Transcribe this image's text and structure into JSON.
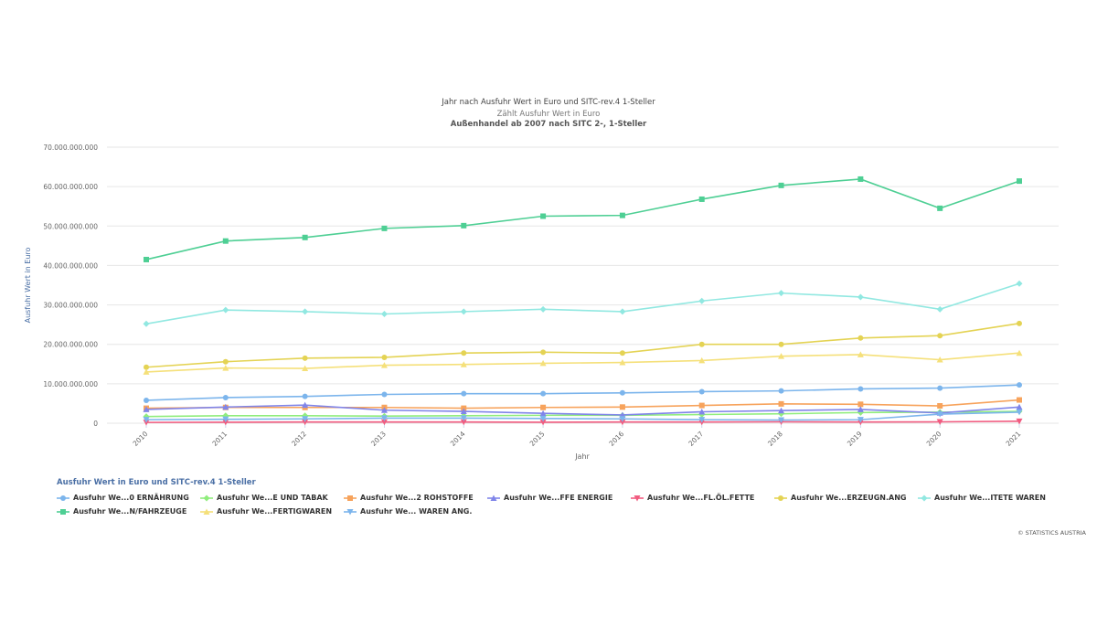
{
  "chart_data": {
    "type": "line",
    "title": "Jahr nach Ausfuhr Wert in Euro und SITC-rev.4 1-Steller",
    "subtitle": "Zählt Ausfuhr Wert in Euro",
    "subtitle2": "Außenhandel ab 2007 nach SITC 2-, 1-Steller",
    "xlabel": "Jahr",
    "ylabel": "Ausfuhr Wert in Euro",
    "ylim": [
      0,
      70000000000
    ],
    "yticks": [
      "0",
      "10.000.000.000",
      "20.000.000.000",
      "30.000.000.000",
      "40.000.000.000",
      "50.000.000.000",
      "60.000.000.000",
      "70.000.000.000"
    ],
    "ytick_values": [
      0,
      10000000000,
      20000000000,
      30000000000,
      40000000000,
      50000000000,
      60000000000,
      70000000000
    ],
    "categories": [
      "2010",
      "2011",
      "2012",
      "2013",
      "2014",
      "2015",
      "2016",
      "2017",
      "2018",
      "2019",
      "2020",
      "2021"
    ],
    "grid": true,
    "legend_title": "Ausfuhr Wert in Euro und SITC-rev.4 1-Steller",
    "legend_position": "bottom-left",
    "series": [
      {
        "name": "Ausfuhr We...0 ERNÄHRUNG",
        "color": "#7cb5ec",
        "marker": "circle",
        "values": [
          5800000000,
          6500000000,
          6800000000,
          7300000000,
          7500000000,
          7500000000,
          7700000000,
          8000000000,
          8200000000,
          8700000000,
          8900000000,
          9700000000
        ]
      },
      {
        "name": "Ausfuhr We...E UND TABAK",
        "color": "#90ed7d",
        "marker": "diamond",
        "values": [
          1700000000,
          1900000000,
          1900000000,
          1800000000,
          1900000000,
          2000000000,
          2000000000,
          2200000000,
          2400000000,
          2700000000,
          2800000000,
          3000000000
        ]
      },
      {
        "name": "Ausfuhr We...2 ROHSTOFFE",
        "color": "#f7a35c",
        "marker": "square",
        "values": [
          3800000000,
          4000000000,
          4000000000,
          4000000000,
          3800000000,
          4000000000,
          4100000000,
          4500000000,
          4900000000,
          4800000000,
          4400000000,
          5900000000
        ]
      },
      {
        "name": "Ausfuhr We...FFE ENERGIE",
        "color": "#8085e9",
        "marker": "triangle",
        "values": [
          3500000000,
          4100000000,
          4600000000,
          3300000000,
          3000000000,
          2500000000,
          2100000000,
          2900000000,
          3200000000,
          3500000000,
          2600000000,
          4100000000
        ]
      },
      {
        "name": "Ausfuhr We...FL.ÖL.FETTE",
        "color": "#f15c80",
        "marker": "triangle-down",
        "values": [
          200000000,
          250000000,
          300000000,
          300000000,
          300000000,
          250000000,
          300000000,
          300000000,
          350000000,
          300000000,
          350000000,
          500000000
        ]
      },
      {
        "name": "Ausfuhr We...ERZEUGN.ANG",
        "color": "#e4d354",
        "marker": "circle",
        "values": [
          14200000000,
          15600000000,
          16500000000,
          16700000000,
          17800000000,
          18000000000,
          17800000000,
          20000000000,
          20000000000,
          21600000000,
          22200000000,
          25300000000
        ]
      },
      {
        "name": "Ausfuhr We...ITETE WAREN",
        "color": "#91e8e1",
        "marker": "diamond",
        "values": [
          25200000000,
          28700000000,
          28300000000,
          27700000000,
          28300000000,
          28900000000,
          28300000000,
          31000000000,
          33000000000,
          32000000000,
          28900000000,
          35400000000
        ]
      },
      {
        "name": "Ausfuhr We...N/FAHRZEUGE",
        "color": "#4ecf94",
        "marker": "square",
        "values": [
          41500000000,
          46200000000,
          47100000000,
          49400000000,
          50100000000,
          52500000000,
          52700000000,
          56800000000,
          60300000000,
          61900000000,
          54500000000,
          61400000000
        ]
      },
      {
        "name": "Ausfuhr We...FERTIGWAREN",
        "color": "#f5e07a",
        "marker": "triangle",
        "values": [
          13000000000,
          14000000000,
          13900000000,
          14700000000,
          14900000000,
          15200000000,
          15400000000,
          15900000000,
          17000000000,
          17400000000,
          16100000000,
          17800000000
        ]
      },
      {
        "name": "Ausfuhr We... WAREN ANG.",
        "color": "#7cb5ec",
        "marker": "triangle-down",
        "values": [
          900000000,
          1000000000,
          1100000000,
          1300000000,
          1300000000,
          1200000000,
          1100000000,
          900000000,
          800000000,
          900000000,
          2300000000,
          2800000000
        ]
      }
    ]
  },
  "credits": "© STATISTICS AUSTRIA"
}
